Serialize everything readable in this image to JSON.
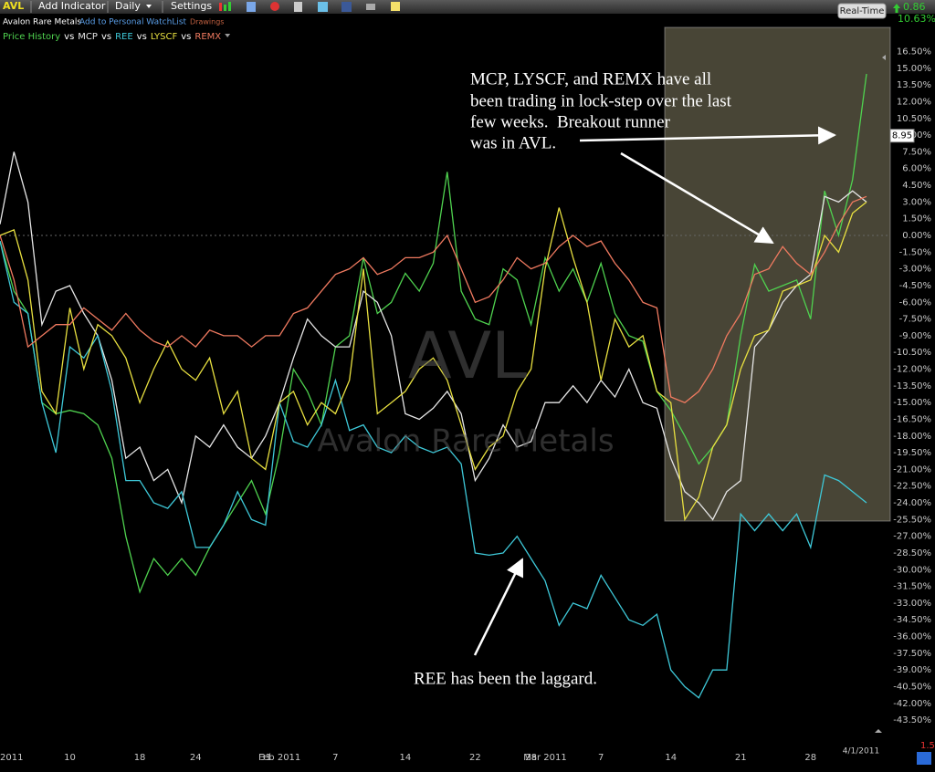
{
  "toolbar": {
    "symbol": "AVL",
    "add_indicator": "Add Indicator",
    "interval": "Daily",
    "settings": "Settings",
    "real_time": "Real-Time",
    "change": 0.86,
    "change_pct": "10.63%"
  },
  "subheader": {
    "name": "Avalon Rare Metals",
    "watchlist": "Add to Personal WatchList",
    "drawings": "Drawings"
  },
  "chart_data": {
    "type": "line",
    "watermark": "AVL",
    "watermark_subtitle": "Avalon Rare Metals",
    "legend_separator": "vs",
    "last_price": 8.95,
    "corner_value": 1.5,
    "annotations": [
      "MCP, LYSCF, and REMX have all",
      "been trading in lock-step over the last",
      "few weeks.  Breakout runner",
      "was in AVL.",
      "REE has been the laggard."
    ],
    "categories": [
      "2011",
      null,
      null,
      null,
      null,
      "10",
      null,
      null,
      null,
      null,
      "18",
      null,
      null,
      null,
      "24",
      null,
      null,
      null,
      null,
      "31",
      "Feb 2011",
      null,
      null,
      null,
      "7",
      null,
      null,
      null,
      null,
      "14",
      null,
      null,
      null,
      null,
      "22",
      null,
      null,
      null,
      "28",
      "Mar 2011",
      null,
      null,
      null,
      "7",
      null,
      null,
      null,
      null,
      "14",
      null,
      null,
      null,
      null,
      "21",
      null,
      null,
      null,
      null,
      "28",
      null,
      null,
      null,
      "4/1/2011"
    ],
    "series": [
      {
        "name": "Price History",
        "color": "#4fd24f",
        "values": [
          -0.5,
          -5,
          -7,
          -15,
          -16,
          -15.7,
          -16,
          -17,
          -20,
          -27,
          -32,
          -29,
          -30.5,
          -29,
          -30.5,
          -28,
          -26,
          -24,
          -22,
          -25,
          -19.5,
          -12,
          -14,
          -17,
          -10,
          -9,
          -2,
          -7,
          -6,
          -3.4,
          -5,
          -2.5,
          5.7,
          -5,
          -7.5,
          -8,
          -3,
          -4,
          -8,
          -2,
          -5,
          -3,
          -6,
          -2.5,
          -7,
          -9,
          -9.5,
          -14,
          -15.7,
          -18,
          -20.5,
          -19,
          -17,
          -9,
          -2.6,
          -5,
          -4.5,
          -4,
          -7.5,
          4,
          0,
          5,
          14.5
        ]
      },
      {
        "name": "MCP",
        "color": "#e6e6e6",
        "values": [
          1,
          7.5,
          3,
          -8,
          -5,
          -4.5,
          -7,
          -9,
          -13,
          -20,
          -19,
          -22,
          -21,
          -24,
          -18,
          -19,
          -17,
          -19,
          -20,
          -18,
          -15,
          -11,
          -7.5,
          -9,
          -10,
          -10,
          -5,
          -6,
          -9,
          -16,
          -16.5,
          -15.5,
          -14,
          -16,
          -22,
          -20,
          -17,
          -19,
          -18.5,
          -15,
          -15,
          -13.5,
          -15,
          -13,
          -14.5,
          -12,
          -15,
          -15.5,
          -20,
          -23,
          -24,
          -25.5,
          -23,
          -22,
          -10,
          -8.5,
          -6,
          -4.5,
          -3.5,
          3.5,
          3,
          4,
          3
        ]
      },
      {
        "name": "REE",
        "color": "#3ec8d8",
        "values": [
          -0.5,
          -6,
          -7,
          -15,
          -19.5,
          -10,
          -11,
          -9,
          -14,
          -22,
          -22,
          -24,
          -24.5,
          -23,
          -28,
          -28,
          -26,
          -23,
          -25.5,
          -26,
          -15,
          -18.5,
          -19,
          -17,
          -13,
          -17.5,
          -17,
          -19,
          -19.5,
          -18,
          -19,
          -19.5,
          -19,
          -20.5,
          -28.5,
          -28.7,
          -28.5,
          -27,
          -29,
          -31,
          -35,
          -33,
          -33.5,
          -30.5,
          -32.5,
          -34.5,
          -35,
          -34,
          -39,
          -40.5,
          -41.5,
          -39,
          -39,
          -25,
          -26.5,
          -25,
          -26.5,
          -25,
          -28,
          -21.5,
          -22,
          -23,
          -24
        ]
      },
      {
        "name": "LYSCF",
        "color": "#e8e040",
        "values": [
          0,
          0.5,
          -4,
          -14,
          -16,
          -6.5,
          -12,
          -8,
          -9,
          -11,
          -15,
          -12,
          -9.5,
          -12,
          -13,
          -11,
          -16,
          -14,
          -20,
          -21,
          -15,
          -14,
          -17,
          -15,
          -16,
          -13,
          -3,
          -16,
          -15,
          -14,
          -12,
          -11,
          -13,
          -17,
          -21,
          -19,
          -18,
          -14,
          -12,
          -3,
          2.5,
          -2,
          -6,
          -13,
          -7.5,
          -10,
          -9,
          -14,
          -15,
          -25.5,
          -23.5,
          -19,
          -17,
          -12,
          -9,
          -8.5,
          -5,
          -4.5,
          -4,
          0,
          -1.5,
          2,
          3
        ]
      },
      {
        "name": "REMX",
        "color": "#f07a60",
        "values": [
          0,
          -4,
          -10,
          -9,
          -8,
          -8,
          -6.5,
          -7.5,
          -8.5,
          -7,
          -8.5,
          -9.5,
          -10,
          -9,
          -10,
          -8.5,
          -9,
          -9,
          -10,
          -9,
          -9,
          -7,
          -6.5,
          -5,
          -3.5,
          -3,
          -2,
          -3.5,
          -3,
          -2,
          -2,
          -1.5,
          0,
          -3,
          -6,
          -5.5,
          -4,
          -2,
          -3,
          -2.5,
          -1,
          0,
          -1,
          -0.5,
          -2.5,
          -4,
          -6,
          -6.5,
          -14.5,
          -15,
          -14,
          -12,
          -9,
          -7,
          -3.5,
          -3,
          -1,
          -2.5,
          -3.5,
          -1.5,
          1,
          3,
          3.5
        ]
      }
    ],
    "ylim": [
      -44.8,
      17.2
    ],
    "yticks": [
      {
        "value": 16.5,
        "label": "16.50%"
      },
      {
        "value": 15,
        "label": "15.00%"
      },
      {
        "value": 13.5,
        "label": "13.50%"
      },
      {
        "value": 12,
        "label": "12.00%"
      },
      {
        "value": 10.5,
        "label": "10.50%"
      },
      {
        "value": 9,
        "label": "9.00%"
      },
      {
        "value": 7.5,
        "label": "7.50%"
      },
      {
        "value": 6,
        "label": "6.00%"
      },
      {
        "value": 4.5,
        "label": "4.50%"
      },
      {
        "value": 3,
        "label": "3.00%"
      },
      {
        "value": 1.5,
        "label": "1.50%"
      },
      {
        "value": 0,
        "label": "0.00%"
      },
      {
        "value": -1.5,
        "label": "-1.50%"
      },
      {
        "value": -3,
        "label": "-3.00%"
      },
      {
        "value": -4.5,
        "label": "-4.50%"
      },
      {
        "value": -6,
        "label": "-6.00%"
      },
      {
        "value": -7.5,
        "label": "-7.50%"
      },
      {
        "value": -9,
        "label": "-9.00%"
      },
      {
        "value": -10.5,
        "label": "-10.50%"
      },
      {
        "value": -12,
        "label": "-12.00%"
      },
      {
        "value": -13.5,
        "label": "-13.50%"
      },
      {
        "value": -15,
        "label": "-15.00%"
      },
      {
        "value": -16.5,
        "label": "-16.50%"
      },
      {
        "value": -18,
        "label": "-18.00%"
      },
      {
        "value": -19.5,
        "label": "-19.50%"
      },
      {
        "value": -21,
        "label": "-21.00%"
      },
      {
        "value": -22.5,
        "label": "-22.50%"
      },
      {
        "value": -24,
        "label": "-24.00%"
      },
      {
        "value": -25.5,
        "label": "-25.50%"
      },
      {
        "value": -27,
        "label": "-27.00%"
      },
      {
        "value": -28.5,
        "label": "-28.50%"
      },
      {
        "value": -30,
        "label": "-30.00%"
      },
      {
        "value": -31.5,
        "label": "-31.50%"
      },
      {
        "value": -33,
        "label": "-33.00%"
      },
      {
        "value": -34.5,
        "label": "-34.50%"
      },
      {
        "value": -36,
        "label": "-36.00%"
      },
      {
        "value": -37.5,
        "label": "-37.50%"
      },
      {
        "value": -39,
        "label": "-39.00%"
      },
      {
        "value": -40.5,
        "label": "-40.50%"
      },
      {
        "value": -42,
        "label": "-42.00%"
      },
      {
        "value": -43.5,
        "label": "-43.50%"
      }
    ],
    "grid": false
  }
}
